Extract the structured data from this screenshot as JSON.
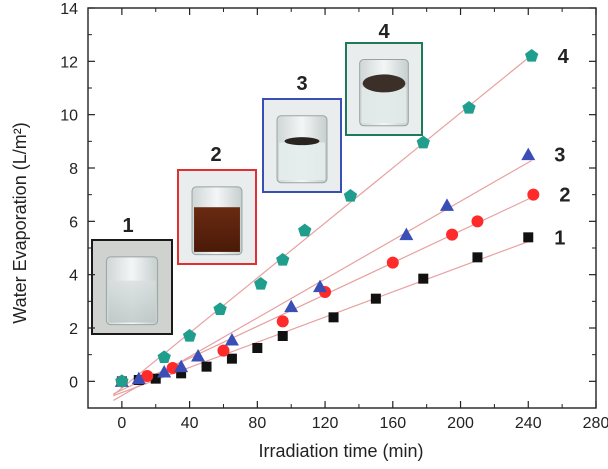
{
  "chart_data": {
    "type": "scatter",
    "title": "",
    "xlabel": "Irradiation time (min)",
    "ylabel": "Water Evaporation (L/m²)",
    "xlim": [
      -20,
      280
    ],
    "ylim": [
      -1,
      14
    ],
    "xticks": [
      0,
      40,
      80,
      120,
      160,
      200,
      240,
      280
    ],
    "yticks": [
      0,
      2,
      4,
      6,
      8,
      10,
      12,
      14
    ],
    "grid": false,
    "series": [
      {
        "name": "1",
        "marker": "square",
        "color": "#111111",
        "line_color": "#e8a0a0",
        "x": [
          0,
          10,
          20,
          35,
          50,
          65,
          80,
          95,
          125,
          150,
          178,
          210,
          240
        ],
        "y": [
          0,
          0.05,
          0.1,
          0.3,
          0.55,
          0.85,
          1.25,
          1.7,
          2.4,
          3.1,
          3.85,
          4.65,
          5.4
        ]
      },
      {
        "name": "2",
        "marker": "circle",
        "color": "#ff2a2a",
        "line_color": "#e8a0a0",
        "x": [
          0,
          15,
          30,
          60,
          95,
          120,
          160,
          195,
          210,
          243
        ],
        "y": [
          0,
          0.2,
          0.5,
          1.15,
          2.25,
          3.35,
          4.45,
          5.5,
          6.0,
          7.0
        ]
      },
      {
        "name": "3",
        "marker": "triangle",
        "color": "#3a4fb5",
        "line_color": "#e8a0a0",
        "x": [
          0,
          10,
          25,
          35,
          45,
          65,
          100,
          117,
          168,
          192,
          240
        ],
        "y": [
          0,
          0.1,
          0.35,
          0.55,
          0.95,
          1.55,
          2.8,
          3.55,
          5.5,
          6.6,
          8.5
        ]
      },
      {
        "name": "4",
        "marker": "pentagon",
        "color": "#1f9e8e",
        "line_color": "#e8a0a0",
        "x": [
          0,
          25,
          40,
          58,
          82,
          95,
          108,
          135,
          178,
          205,
          242
        ],
        "y": [
          0,
          0.9,
          1.7,
          2.7,
          3.65,
          4.55,
          5.65,
          6.95,
          8.95,
          10.25,
          12.2
        ]
      }
    ],
    "insets": [
      {
        "label": "1",
        "content": "clear water",
        "border": "#1a1a1a"
      },
      {
        "label": "2",
        "content": "brown suspension",
        "border": "#e23030"
      },
      {
        "label": "3",
        "content": "floating dark film",
        "border": "#3a4fb5"
      },
      {
        "label": "4",
        "content": "floating dark layer",
        "border": "#1f7a5c"
      }
    ]
  }
}
